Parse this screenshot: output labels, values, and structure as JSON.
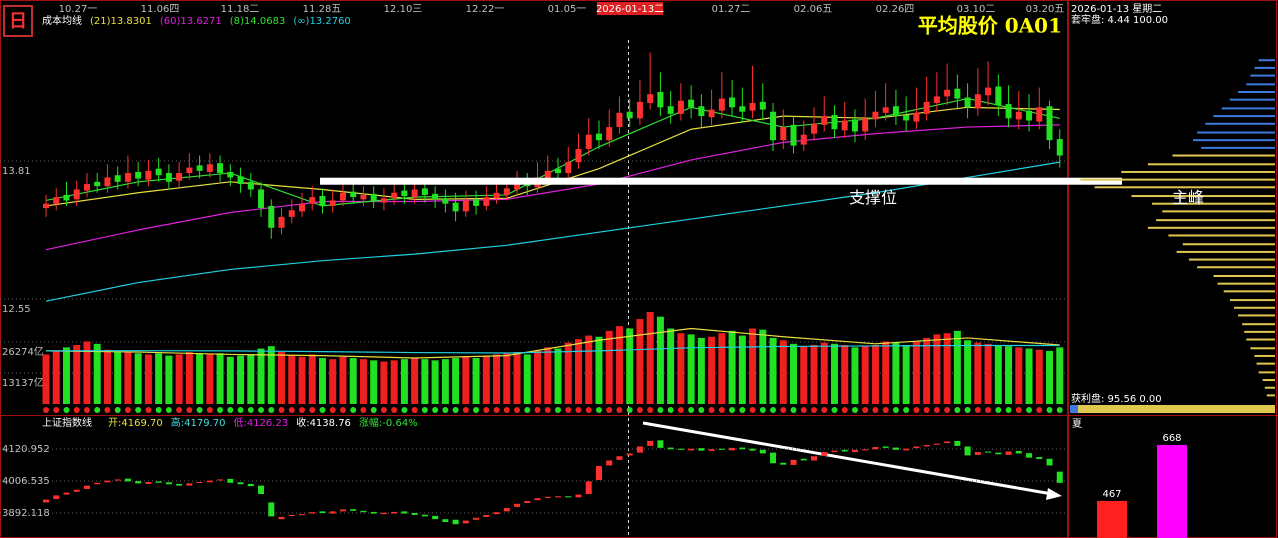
{
  "toolbar": {
    "period_icon": "日"
  },
  "dates": [
    "10.27一",
    "11.06四",
    "11.18二",
    "11.28五",
    "12.10三",
    "12.22一",
    "01.05一",
    "01.27二",
    "02.06五",
    "02.26四",
    "03.10二",
    "03.20五"
  ],
  "cursor_date": "2026-01-13二",
  "legend_title": "成本均线",
  "watermark": "平均股价 0A01",
  "chart_data": [
    {
      "type": "candlestick",
      "ylim": [
        12.267,
        15.207
      ],
      "yticks": [
        13.81,
        12.55
      ],
      "up_color": "#ff3030",
      "down_color": "#22e022",
      "open": [
        13.38,
        13.42,
        13.5,
        13.46,
        13.54,
        13.62,
        13.58,
        13.68,
        13.62,
        13.71,
        13.64,
        13.74,
        13.7,
        13.63,
        13.7,
        13.77,
        13.71,
        13.79,
        13.71,
        13.67,
        13.62,
        13.55,
        13.4,
        13.2,
        13.3,
        13.35,
        13.42,
        13.49,
        13.4,
        13.45,
        13.53,
        13.46,
        13.51,
        13.43,
        13.47,
        13.54,
        13.48,
        13.56,
        13.51,
        13.47,
        13.43,
        13.35,
        13.46,
        13.4,
        13.47,
        13.5,
        13.55,
        13.61,
        13.57,
        13.65,
        13.74,
        13.7,
        13.8,
        13.92,
        14.06,
        14.0,
        14.12,
        14.26,
        14.2,
        14.34,
        14.44,
        14.31,
        14.24,
        14.37,
        14.31,
        14.21,
        14.27,
        14.39,
        14.31,
        14.27,
        14.35,
        14.26,
        14.0,
        14.14,
        13.96,
        14.06,
        14.14,
        14.23,
        14.09,
        14.19,
        14.08,
        14.19,
        14.25,
        14.31,
        14.23,
        14.17,
        14.24,
        14.34,
        14.4,
        14.47,
        14.39,
        14.29,
        14.41,
        14.49,
        14.33,
        14.19,
        14.27,
        14.17,
        14.31,
        14.01
      ],
      "high": [
        13.5,
        13.56,
        13.62,
        13.63,
        13.7,
        13.7,
        13.78,
        13.76,
        13.86,
        13.8,
        13.82,
        13.84,
        13.78,
        13.8,
        13.88,
        13.86,
        13.88,
        13.86,
        13.78,
        13.75,
        13.7,
        13.62,
        13.46,
        13.38,
        13.46,
        13.52,
        13.58,
        13.56,
        13.54,
        13.62,
        13.6,
        13.58,
        13.58,
        13.56,
        13.62,
        13.62,
        13.66,
        13.64,
        13.58,
        13.55,
        13.52,
        13.54,
        13.54,
        13.58,
        13.62,
        13.66,
        13.72,
        13.7,
        13.8,
        13.86,
        13.84,
        13.94,
        14.06,
        14.2,
        14.18,
        14.28,
        14.4,
        14.38,
        14.55,
        14.8,
        14.62,
        14.45,
        14.52,
        14.5,
        14.42,
        14.46,
        14.62,
        14.55,
        14.48,
        14.68,
        14.52,
        14.34,
        14.28,
        14.22,
        14.18,
        14.3,
        14.4,
        14.32,
        14.35,
        14.28,
        14.38,
        14.45,
        14.52,
        14.46,
        14.4,
        14.48,
        14.58,
        14.62,
        14.7,
        14.6,
        14.52,
        14.66,
        14.72,
        14.6,
        14.5,
        14.45,
        14.42,
        14.48,
        14.36,
        14.1
      ],
      "low": [
        13.3,
        13.36,
        13.4,
        13.4,
        13.48,
        13.52,
        13.52,
        13.55,
        13.56,
        13.58,
        13.58,
        13.62,
        13.55,
        13.57,
        13.64,
        13.65,
        13.66,
        13.62,
        13.58,
        13.52,
        13.48,
        13.3,
        13.1,
        13.14,
        13.24,
        13.3,
        13.36,
        13.33,
        13.34,
        13.4,
        13.42,
        13.4,
        13.38,
        13.36,
        13.41,
        13.42,
        13.42,
        13.43,
        13.38,
        13.34,
        13.26,
        13.3,
        13.32,
        13.36,
        13.42,
        13.45,
        13.5,
        13.5,
        13.52,
        13.6,
        13.62,
        13.64,
        13.74,
        13.86,
        13.92,
        13.94,
        14.06,
        14.12,
        14.14,
        14.28,
        14.22,
        14.15,
        14.18,
        14.2,
        14.12,
        14.14,
        14.2,
        14.22,
        14.16,
        14.2,
        14.18,
        13.9,
        13.92,
        13.88,
        13.9,
        14.0,
        14.08,
        14.02,
        14.02,
        13.98,
        14.0,
        14.12,
        14.18,
        14.14,
        14.08,
        14.1,
        14.18,
        14.26,
        14.32,
        14.28,
        14.2,
        14.22,
        14.32,
        14.22,
        14.12,
        14.1,
        14.08,
        14.1,
        13.92,
        13.75
      ],
      "close": [
        13.42,
        13.48,
        13.45,
        13.55,
        13.6,
        13.58,
        13.66,
        13.62,
        13.7,
        13.65,
        13.72,
        13.68,
        13.62,
        13.7,
        13.75,
        13.72,
        13.78,
        13.7,
        13.66,
        13.6,
        13.55,
        13.38,
        13.2,
        13.3,
        13.36,
        13.42,
        13.48,
        13.4,
        13.45,
        13.52,
        13.48,
        13.5,
        13.44,
        13.47,
        13.52,
        13.49,
        13.55,
        13.5,
        13.46,
        13.42,
        13.35,
        13.45,
        13.4,
        13.48,
        13.52,
        13.56,
        13.6,
        13.58,
        13.66,
        13.72,
        13.7,
        13.8,
        13.92,
        14.05,
        14.0,
        14.12,
        14.25,
        14.2,
        14.35,
        14.42,
        14.3,
        14.24,
        14.36,
        14.3,
        14.22,
        14.28,
        14.38,
        14.3,
        14.26,
        14.34,
        14.28,
        14.0,
        14.12,
        13.95,
        14.05,
        14.15,
        14.22,
        14.1,
        14.18,
        14.08,
        14.2,
        14.26,
        14.3,
        14.22,
        14.18,
        14.25,
        14.35,
        14.4,
        14.46,
        14.38,
        14.3,
        14.42,
        14.48,
        14.32,
        14.2,
        14.26,
        14.18,
        14.3,
        14.0,
        13.86
      ],
      "ma_x": [
        0,
        9,
        18,
        27,
        36,
        45,
        54,
        63,
        72,
        81,
        90,
        99
      ],
      "series": [
        {
          "name": "(21)13.8301",
          "color": "#e8e040",
          "values": [
            13.4,
            13.52,
            13.62,
            13.55,
            13.46,
            13.47,
            13.74,
            14.1,
            14.22,
            14.2,
            14.3,
            14.28
          ]
        },
        {
          "name": "(60)13.6271",
          "color": "#e020e0",
          "values": [
            13.0,
            13.18,
            13.34,
            13.44,
            13.44,
            13.46,
            13.6,
            13.82,
            13.98,
            14.06,
            14.12,
            14.14
          ]
        },
        {
          "name": "(8)14.0683",
          "color": "#30e030",
          "values": [
            13.45,
            13.62,
            13.7,
            13.4,
            13.48,
            13.5,
            13.94,
            14.3,
            14.12,
            14.2,
            14.38,
            14.2
          ]
        },
        {
          "name": "(∞)13.2760",
          "color": "#20d0e0",
          "values": [
            12.53,
            12.7,
            12.82,
            12.9,
            12.96,
            13.04,
            13.16,
            13.28,
            13.4,
            13.52,
            13.66,
            13.8
          ]
        }
      ],
      "annotation": {
        "label": "支撑位",
        "value": 13.63
      }
    },
    {
      "type": "bar",
      "ylim": [
        0,
        40000
      ],
      "yticks": [
        {
          "value": 26274,
          "label": "26274亿"
        },
        {
          "value": 13137,
          "label": "13137亿"
        }
      ],
      "up_color": "#f02020",
      "down_color": "#22e022",
      "values": [
        21000,
        22500,
        24000,
        25000,
        26500,
        25500,
        23000,
        22000,
        22000,
        21500,
        21000,
        21500,
        20500,
        21000,
        22000,
        21500,
        21000,
        21500,
        20000,
        20500,
        21000,
        23500,
        24500,
        22000,
        20500,
        20000,
        21000,
        19500,
        19000,
        20000,
        19500,
        19000,
        18500,
        18000,
        18500,
        19000,
        19500,
        19000,
        18500,
        19000,
        19500,
        20000,
        19500,
        20500,
        21000,
        21500,
        22000,
        21000,
        22500,
        24000,
        23500,
        26000,
        27500,
        29000,
        28500,
        31000,
        33000,
        32000,
        36000,
        39000,
        37000,
        32000,
        30000,
        29500,
        28000,
        28500,
        30000,
        31000,
        29000,
        32000,
        31500,
        28000,
        27000,
        25500,
        24500,
        25000,
        26000,
        25500,
        25000,
        24000,
        24500,
        25000,
        26500,
        26000,
        25000,
        26500,
        28000,
        29500,
        30000,
        31000,
        27000,
        26000,
        25500,
        25000,
        24500,
        24000,
        23500,
        23000,
        22500,
        24000
      ],
      "ma_x": [
        0,
        9,
        18,
        27,
        36,
        45,
        54,
        63,
        72,
        81,
        90,
        99
      ],
      "series": [
        {
          "color": "#e8e040",
          "values": [
            22500,
            22000,
            21000,
            20500,
            19500,
            20500,
            27000,
            32000,
            28500,
            25500,
            28000,
            25000
          ]
        },
        {
          "color": "#20d0e0",
          "values": [
            22500,
            22600,
            22500,
            22200,
            21800,
            21600,
            22500,
            23800,
            24400,
            24600,
            24800,
            24800
          ]
        }
      ]
    },
    {
      "type": "candlestick",
      "title": "上证指数线",
      "stats": [
        "开:4169.70",
        "高:4179.70",
        "低:4126.23",
        "收:4138.76",
        "涨幅:-0.64%"
      ],
      "stat_colors": [
        "#e8e040",
        "#40e0e0",
        "#e020e0",
        "#ffffff",
        "#30e030"
      ],
      "ylim": [
        3809.9,
        4224.6
      ],
      "yticks": [
        4120.952,
        4006.535,
        3892.118
      ],
      "up_color": "#ff3030",
      "down_color": "#22e022",
      "open": [
        3930,
        3942,
        3958,
        3968,
        3978,
        3995,
        4002,
        4008,
        4015,
        4006,
        3996,
        4005,
        4002,
        3996,
        3990,
        4000,
        4002,
        4010,
        4014,
        4002,
        3996,
        3990,
        3930,
        3870,
        3882,
        3884,
        3890,
        3898,
        3890,
        3898,
        3906,
        3900,
        3896,
        3888,
        3890,
        3898,
        3892,
        3886,
        3882,
        3870,
        3868,
        3855,
        3868,
        3878,
        3888,
        3898,
        3914,
        3928,
        3938,
        3946,
        3948,
        3952,
        3948,
        3960,
        4010,
        4062,
        4082,
        4098,
        4108,
        4132,
        4152,
        4126,
        4122,
        4116,
        4124,
        4114,
        4122,
        4116,
        4126,
        4122,
        4118,
        4108,
        4072,
        4064,
        4086,
        4080,
        4096,
        4110,
        4118,
        4110,
        4116,
        4120,
        4130,
        4126,
        4116,
        4124,
        4130,
        4136,
        4142,
        4150,
        4130,
        4100,
        4112,
        4108,
        4100,
        4114,
        4106,
        4092,
        4086,
        4040
      ],
      "close": [
        3940,
        3955,
        3965,
        3975,
        3990,
        4000,
        4008,
        4012,
        4005,
        3998,
        4003,
        4000,
        3995,
        3990,
        3998,
        4003,
        4008,
        4012,
        4000,
        3995,
        3988,
        3960,
        3880,
        3878,
        3885,
        3888,
        3895,
        3892,
        3898,
        3905,
        3900,
        3895,
        3890,
        3893,
        3896,
        3890,
        3885,
        3880,
        3870,
        3860,
        3852,
        3865,
        3875,
        3885,
        3895,
        3910,
        3925,
        3935,
        3945,
        3950,
        3952,
        3948,
        3958,
        4005,
        4060,
        4080,
        4095,
        4105,
        4130,
        4150,
        4125,
        4120,
        4118,
        4122,
        4115,
        4120,
        4118,
        4125,
        4120,
        4115,
        4105,
        4070,
        4065,
        4082,
        4080,
        4095,
        4110,
        4115,
        4112,
        4118,
        4120,
        4128,
        4125,
        4118,
        4122,
        4130,
        4135,
        4140,
        4148,
        4132,
        4098,
        4110,
        4108,
        4102,
        4112,
        4105,
        4090,
        4085,
        4062,
        4000
      ]
    },
    {
      "type": "bar",
      "title": "夏",
      "ylim": [
        334,
        680
      ],
      "values": [
        467,
        668
      ],
      "colors": [
        "#ff2020",
        "#ff00ff"
      ]
    }
  ],
  "chip_panel": {
    "date": "2026-01-13 星期二",
    "trapped": "套牢盘: 4.44 100.00",
    "peak_label": "主峰",
    "profit": "获利盘: 95.56 0.00",
    "xlim": [
      0,
      100
    ],
    "above_color": "#3c7ce0",
    "below_color": "#e0c850",
    "prices": [
      14.73,
      14.66,
      14.59,
      14.51,
      14.44,
      14.37,
      14.29,
      14.22,
      14.15,
      14.07,
      14.0,
      13.93,
      13.86,
      13.78,
      13.71,
      13.64,
      13.57,
      13.49,
      13.42,
      13.35,
      13.27,
      13.2,
      13.13,
      13.05,
      12.98,
      12.91,
      12.84,
      12.76,
      12.69,
      12.62,
      12.54,
      12.47,
      12.4,
      12.32,
      12.25,
      12.18,
      12.1,
      12.03,
      11.96,
      11.88,
      11.81,
      11.74,
      11.67
    ],
    "values": [
      8,
      10,
      12,
      14,
      18,
      22,
      26,
      30,
      34,
      38,
      40,
      36,
      50,
      62,
      75,
      95,
      88,
      70,
      60,
      55,
      58,
      62,
      52,
      45,
      48,
      42,
      38,
      30,
      28,
      25,
      22,
      20,
      18,
      16,
      15,
      14,
      12,
      10,
      9,
      8,
      6,
      5,
      4
    ]
  }
}
